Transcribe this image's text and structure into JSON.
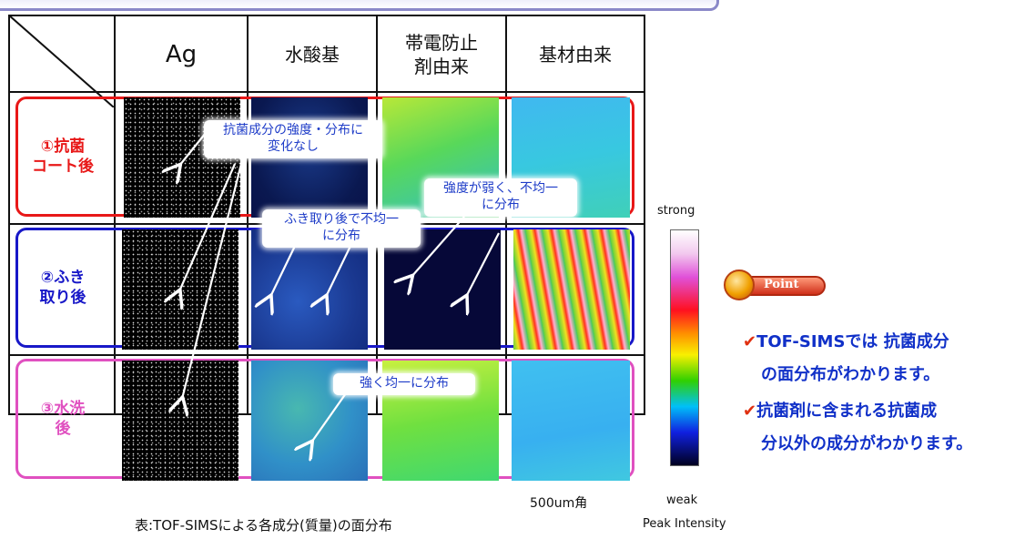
{
  "header": {
    "col_ag": "Ag",
    "col_hydroxyl": "水酸基",
    "col_antistatic": "帯電防止\n剤由来",
    "col_substrate": "基材由来"
  },
  "rows": [
    {
      "label": "①抗菌\nコート後",
      "color": "#e81818"
    },
    {
      "label": "②ふき\n取り後",
      "color": "#1818c8"
    },
    {
      "label": "③水洗\n後",
      "color": "#e050c0"
    }
  ],
  "callouts": {
    "unchanged": "抗菌成分の強度・分布に\n変化なし",
    "weak_uneven": "強度が弱く、不均一\nに分布",
    "wiped_uneven": "ふき取り後で不均一\nに分布",
    "strong_even": "強く均一に分布"
  },
  "colorbar": {
    "top_label": "strong",
    "bottom_label": "weak",
    "caption": "Peak Intensity"
  },
  "scale_label": "500um角",
  "table_caption": "表:TOF-SIMSによる各成分(質量)の面分布",
  "point": {
    "badge_label": "Point",
    "check_mark": "✔",
    "items": [
      {
        "line1": "TOF-SIMSでは 抗菌成分",
        "line2": "の面分布がわかります。"
      },
      {
        "line1": "抗菌剤に含まれる抗菌成",
        "line2": "分以外の成分がわかります。"
      }
    ]
  },
  "colors": {
    "accent_text": "#1030c8",
    "check": "#e03010",
    "title_border": "#8a88c8"
  }
}
